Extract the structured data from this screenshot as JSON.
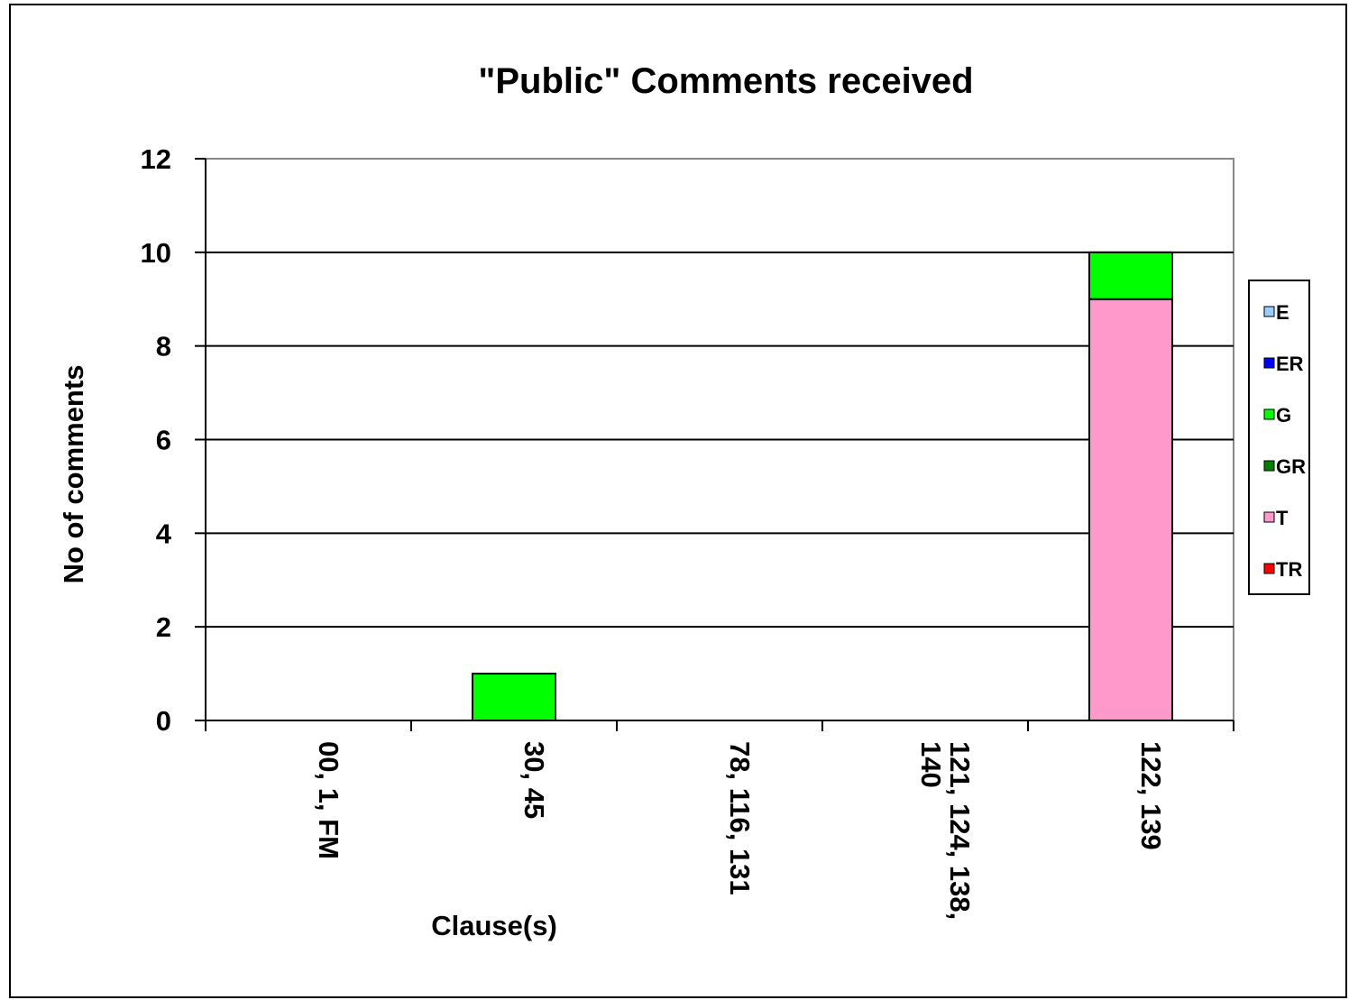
{
  "chart_data": {
    "type": "bar",
    "stacked": true,
    "title": "\"Public\" Comments received",
    "xlabel": "Clause(s)",
    "ylabel": "No of comments",
    "ylim": [
      0,
      12
    ],
    "yticks": [
      0,
      2,
      4,
      6,
      8,
      10,
      12
    ],
    "grid": true,
    "legend_position": "right",
    "categories": [
      [
        "00, 1, FM"
      ],
      [
        "30, 45"
      ],
      [
        "78, 116, 131"
      ],
      [
        "121, 124, 138,",
        "140"
      ],
      [
        "122, 139"
      ]
    ],
    "series": [
      {
        "name": "E",
        "color": "#99CCFF",
        "values": [
          0,
          0,
          0,
          0,
          0
        ]
      },
      {
        "name": "ER",
        "color": "#0000FF",
        "values": [
          0,
          0,
          0,
          0,
          0
        ]
      },
      {
        "name": "G",
        "color": "#00FF00",
        "values": [
          0,
          1,
          0,
          0,
          1
        ]
      },
      {
        "name": "GR",
        "color": "#008000",
        "values": [
          0,
          0,
          0,
          0,
          0
        ]
      },
      {
        "name": "T",
        "color": "#FF99CC",
        "values": [
          0,
          0,
          0,
          0,
          9
        ]
      },
      {
        "name": "TR",
        "color": "#FF0000",
        "values": [
          0,
          0,
          0,
          0,
          0
        ]
      }
    ],
    "stack_order": [
      "T",
      "TR",
      "E",
      "ER",
      "G",
      "GR"
    ]
  }
}
